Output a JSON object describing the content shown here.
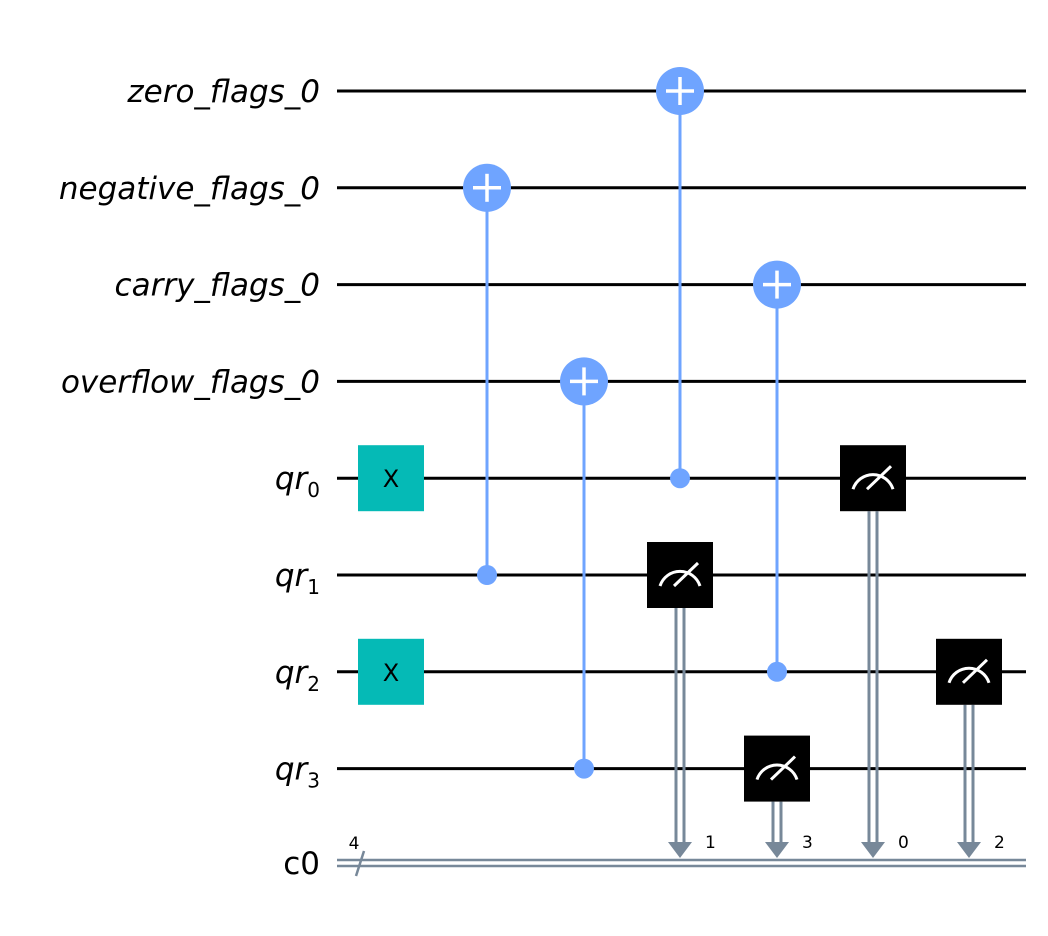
{
  "qubits": [
    {
      "base": "zero_flags_0",
      "sub": ""
    },
    {
      "base": "negative_flags_0",
      "sub": ""
    },
    {
      "base": "carry_flags_0",
      "sub": ""
    },
    {
      "base": "overflow_flags_0",
      "sub": ""
    },
    {
      "base": "qr",
      "sub": "0"
    },
    {
      "base": "qr",
      "sub": "1"
    },
    {
      "base": "qr",
      "sub": "2"
    },
    {
      "base": "qr",
      "sub": "3"
    }
  ],
  "classical": {
    "label": "c0",
    "width_label": "4"
  },
  "gates": [
    {
      "type": "x",
      "col": 0,
      "wire": 4,
      "label": "X"
    },
    {
      "type": "x",
      "col": 0,
      "wire": 6,
      "label": "X"
    },
    {
      "type": "cx",
      "col": 1,
      "control": 5,
      "target": 1
    },
    {
      "type": "cx",
      "col": 2,
      "control": 7,
      "target": 3
    },
    {
      "type": "cx",
      "col": 3,
      "control": 4,
      "target": 0
    },
    {
      "type": "measure",
      "col": 3,
      "wire": 5,
      "clbit": "1"
    },
    {
      "type": "cx",
      "col": 4,
      "control": 6,
      "target": 2
    },
    {
      "type": "measure",
      "col": 4,
      "wire": 7,
      "clbit": "3"
    },
    {
      "type": "measure",
      "col": 5,
      "wire": 4,
      "clbit": "0"
    },
    {
      "type": "measure",
      "col": 6,
      "wire": 6,
      "clbit": "2"
    }
  ],
  "colors": {
    "wire": "#000000",
    "control": "#6fa4ff",
    "x_gate": "#05bab6",
    "measure": "#000000",
    "classical": "#778899"
  }
}
